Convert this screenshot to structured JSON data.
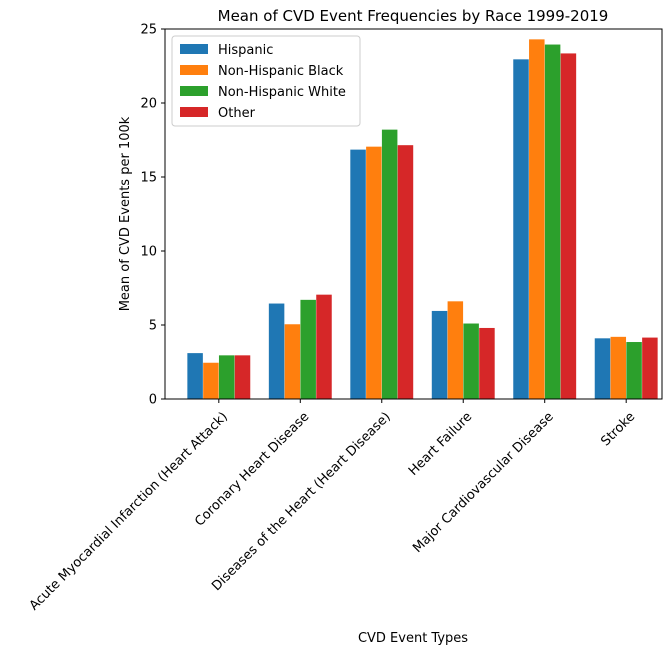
{
  "chart_data": {
    "type": "bar",
    "title": "Mean of CVD Event Frequencies by Race 1999-2019",
    "xlabel": "CVD Event Types",
    "ylabel": "Mean of CVD Events per 100k",
    "ylim": [
      0,
      25
    ],
    "yticks": [
      "0",
      "5",
      "10",
      "15",
      "20",
      "25"
    ],
    "categories": [
      "Acute Myocardial Infarction (Heart Attack)",
      "Coronary Heart Disease",
      "Diseases of the Heart (Heart Disease)",
      "Heart Failure",
      "Major Cardiovascular Disease",
      "Stroke"
    ],
    "series": [
      {
        "name": "Hispanic",
        "color": "#1f77b4",
        "values": [
          3.1,
          6.45,
          16.85,
          5.95,
          22.95,
          4.1
        ]
      },
      {
        "name": "Non-Hispanic Black",
        "color": "#ff7f0e",
        "values": [
          2.45,
          5.05,
          17.05,
          6.6,
          24.3,
          4.2
        ]
      },
      {
        "name": "Non-Hispanic White",
        "color": "#2ca02c",
        "values": [
          2.95,
          6.7,
          18.2,
          5.1,
          23.95,
          3.85
        ]
      },
      {
        "name": "Other",
        "color": "#d62728",
        "values": [
          2.95,
          7.05,
          17.15,
          4.8,
          23.35,
          4.15
        ]
      }
    ],
    "legend_position": "upper-left",
    "grid": false
  }
}
